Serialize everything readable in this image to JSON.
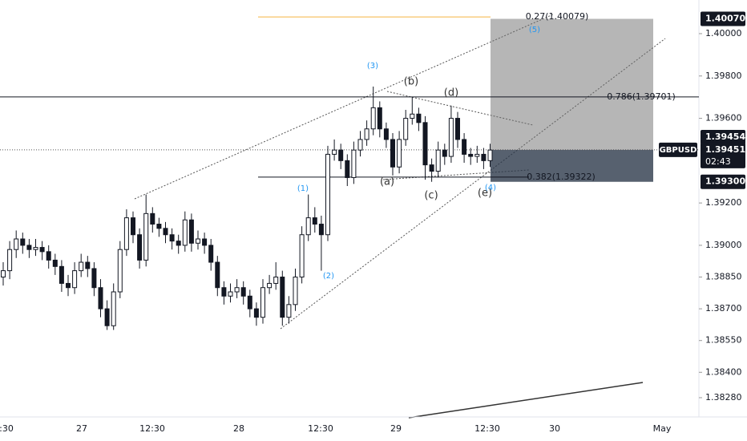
{
  "chart_data": {
    "type": "candlestick",
    "symbol": "GBPUSD",
    "countdown": "02:43",
    "ylim": [
      1.38189,
      1.40159
    ],
    "yticks": [
      {
        "value": 1.4,
        "label": "1.40000"
      },
      {
        "value": 1.398,
        "label": "1.39800"
      },
      {
        "value": 1.396,
        "label": "1.39600"
      },
      {
        "value": 1.392,
        "label": "1.39200"
      },
      {
        "value": 1.39,
        "label": "1.39000"
      },
      {
        "value": 1.3885,
        "label": "1.38850"
      },
      {
        "value": 1.387,
        "label": "1.38700"
      },
      {
        "value": 1.3855,
        "label": "1.38550"
      },
      {
        "value": 1.384,
        "label": "1.38400"
      },
      {
        "value": 1.3828,
        "label": "1.38280"
      }
    ],
    "x_labels": [
      ":30",
      "27",
      "12:30",
      "28",
      "12:30",
      "29",
      "12:30",
      "30",
      "May"
    ],
    "price_markers": [
      {
        "value": 1.4007,
        "label": "1.40070"
      },
      {
        "value": 1.39454,
        "label": "1.39454"
      },
      {
        "value": 1.39451,
        "label": "1.39451"
      },
      {
        "value": 1.393,
        "label": "1.39300"
      }
    ],
    "levels": [
      {
        "value": 1.40079,
        "label": "0.27(1.40079)",
        "color": "#f5b342"
      },
      {
        "value": 1.39701,
        "label": "0.786(1.39701)",
        "color": "#131722"
      },
      {
        "value": 1.39322,
        "label": "0.382(1.39322)",
        "color": "#131722"
      }
    ],
    "wave_labels": [
      "(3)",
      "(b)",
      "(d)",
      "(1)",
      "(a)",
      "(c)",
      "(e)",
      "(4)",
      "(2)",
      "(5)"
    ],
    "bull_color": "#ffffff",
    "bear_color": "#131722",
    "ohlc": [
      [
        1.3885,
        1.3892,
        1.3881,
        1.3888
      ],
      [
        1.3888,
        1.3902,
        1.3884,
        1.3898
      ],
      [
        1.3898,
        1.3907,
        1.3894,
        1.3903
      ],
      [
        1.3903,
        1.3906,
        1.3896,
        1.39
      ],
      [
        1.39,
        1.3903,
        1.3894,
        1.3898
      ],
      [
        1.3898,
        1.3903,
        1.3895,
        1.3899
      ],
      [
        1.3899,
        1.3902,
        1.3893,
        1.3897
      ],
      [
        1.3897,
        1.39,
        1.3889,
        1.3893
      ],
      [
        1.3893,
        1.3896,
        1.3886,
        1.389
      ],
      [
        1.389,
        1.3893,
        1.3878,
        1.3882
      ],
      [
        1.3882,
        1.3886,
        1.3876,
        1.388
      ],
      [
        1.388,
        1.3892,
        1.3877,
        1.3888
      ],
      [
        1.3888,
        1.3896,
        1.3885,
        1.3892
      ],
      [
        1.3892,
        1.3895,
        1.3885,
        1.3889
      ],
      [
        1.3889,
        1.3892,
        1.3876,
        1.388
      ],
      [
        1.388,
        1.3884,
        1.3866,
        1.387
      ],
      [
        1.387,
        1.3874,
        1.386,
        1.3862
      ],
      [
        1.3862,
        1.3882,
        1.386,
        1.3878
      ],
      [
        1.3878,
        1.3902,
        1.3875,
        1.3898
      ],
      [
        1.3898,
        1.3917,
        1.3895,
        1.3913
      ],
      [
        1.3913,
        1.3916,
        1.3901,
        1.3905
      ],
      [
        1.3905,
        1.3908,
        1.3889,
        1.3893
      ],
      [
        1.3893,
        1.3924,
        1.389,
        1.3915
      ],
      [
        1.3915,
        1.3918,
        1.3906,
        1.391
      ],
      [
        1.391,
        1.3913,
        1.3904,
        1.3908
      ],
      [
        1.3908,
        1.3911,
        1.3901,
        1.3905
      ],
      [
        1.3905,
        1.3908,
        1.3898,
        1.3902
      ],
      [
        1.3902,
        1.3905,
        1.3896,
        1.39
      ],
      [
        1.39,
        1.3916,
        1.3897,
        1.3912
      ],
      [
        1.3912,
        1.3915,
        1.3897,
        1.3901
      ],
      [
        1.3901,
        1.3907,
        1.3898,
        1.3903
      ],
      [
        1.3903,
        1.3906,
        1.3896,
        1.39
      ],
      [
        1.39,
        1.3903,
        1.3888,
        1.3892
      ],
      [
        1.3892,
        1.3895,
        1.3876,
        1.388
      ],
      [
        1.388,
        1.3883,
        1.3872,
        1.3876
      ],
      [
        1.3876,
        1.3882,
        1.3873,
        1.3878
      ],
      [
        1.3878,
        1.3884,
        1.3875,
        1.388
      ],
      [
        1.388,
        1.3883,
        1.3872,
        1.3876
      ],
      [
        1.3876,
        1.3879,
        1.3866,
        1.387
      ],
      [
        1.387,
        1.3873,
        1.3862,
        1.3866
      ],
      [
        1.3866,
        1.3884,
        1.3863,
        1.388
      ],
      [
        1.388,
        1.3886,
        1.3877,
        1.3882
      ],
      [
        1.3882,
        1.3892,
        1.3879,
        1.3885
      ],
      [
        1.3885,
        1.3888,
        1.3862,
        1.3866
      ],
      [
        1.3866,
        1.3876,
        1.3863,
        1.3872
      ],
      [
        1.3872,
        1.3889,
        1.3869,
        1.3885
      ],
      [
        1.3885,
        1.3909,
        1.3882,
        1.3905
      ],
      [
        1.3905,
        1.3924,
        1.3902,
        1.3913
      ],
      [
        1.3913,
        1.3918,
        1.3906,
        1.391
      ],
      [
        1.391,
        1.3914,
        1.3888,
        1.3905
      ],
      [
        1.3905,
        1.3947,
        1.3902,
        1.3943
      ],
      [
        1.3943,
        1.395,
        1.394,
        1.3945
      ],
      [
        1.3945,
        1.3948,
        1.3936,
        1.394
      ],
      [
        1.394,
        1.3943,
        1.3928,
        1.3932
      ],
      [
        1.3932,
        1.3949,
        1.3929,
        1.3945
      ],
      [
        1.3945,
        1.3954,
        1.3942,
        1.395
      ],
      [
        1.395,
        1.3959,
        1.3947,
        1.3955
      ],
      [
        1.3955,
        1.3975,
        1.3952,
        1.3965
      ],
      [
        1.3965,
        1.3968,
        1.3951,
        1.3955
      ],
      [
        1.3955,
        1.3958,
        1.3946,
        1.395
      ],
      [
        1.395,
        1.3953,
        1.3933,
        1.3937
      ],
      [
        1.3937,
        1.3954,
        1.3934,
        1.395
      ],
      [
        1.395,
        1.3964,
        1.3947,
        1.396
      ],
      [
        1.396,
        1.397,
        1.3957,
        1.3962
      ],
      [
        1.3962,
        1.3965,
        1.3954,
        1.3958
      ],
      [
        1.3958,
        1.3961,
        1.3931,
        1.3938
      ],
      [
        1.3938,
        1.3941,
        1.393,
        1.3935
      ],
      [
        1.3935,
        1.3949,
        1.3932,
        1.3945
      ],
      [
        1.3945,
        1.3948,
        1.3938,
        1.3942
      ],
      [
        1.3942,
        1.3966,
        1.3939,
        1.396
      ],
      [
        1.396,
        1.3963,
        1.3946,
        1.395
      ],
      [
        1.395,
        1.3953,
        1.3939,
        1.3943
      ],
      [
        1.3943,
        1.3946,
        1.3938,
        1.3942
      ],
      [
        1.3942,
        1.3947,
        1.3939,
        1.3943
      ],
      [
        1.3943,
        1.3946,
        1.3936,
        1.394
      ],
      [
        1.394,
        1.3948,
        1.3937,
        1.3945
      ]
    ]
  }
}
